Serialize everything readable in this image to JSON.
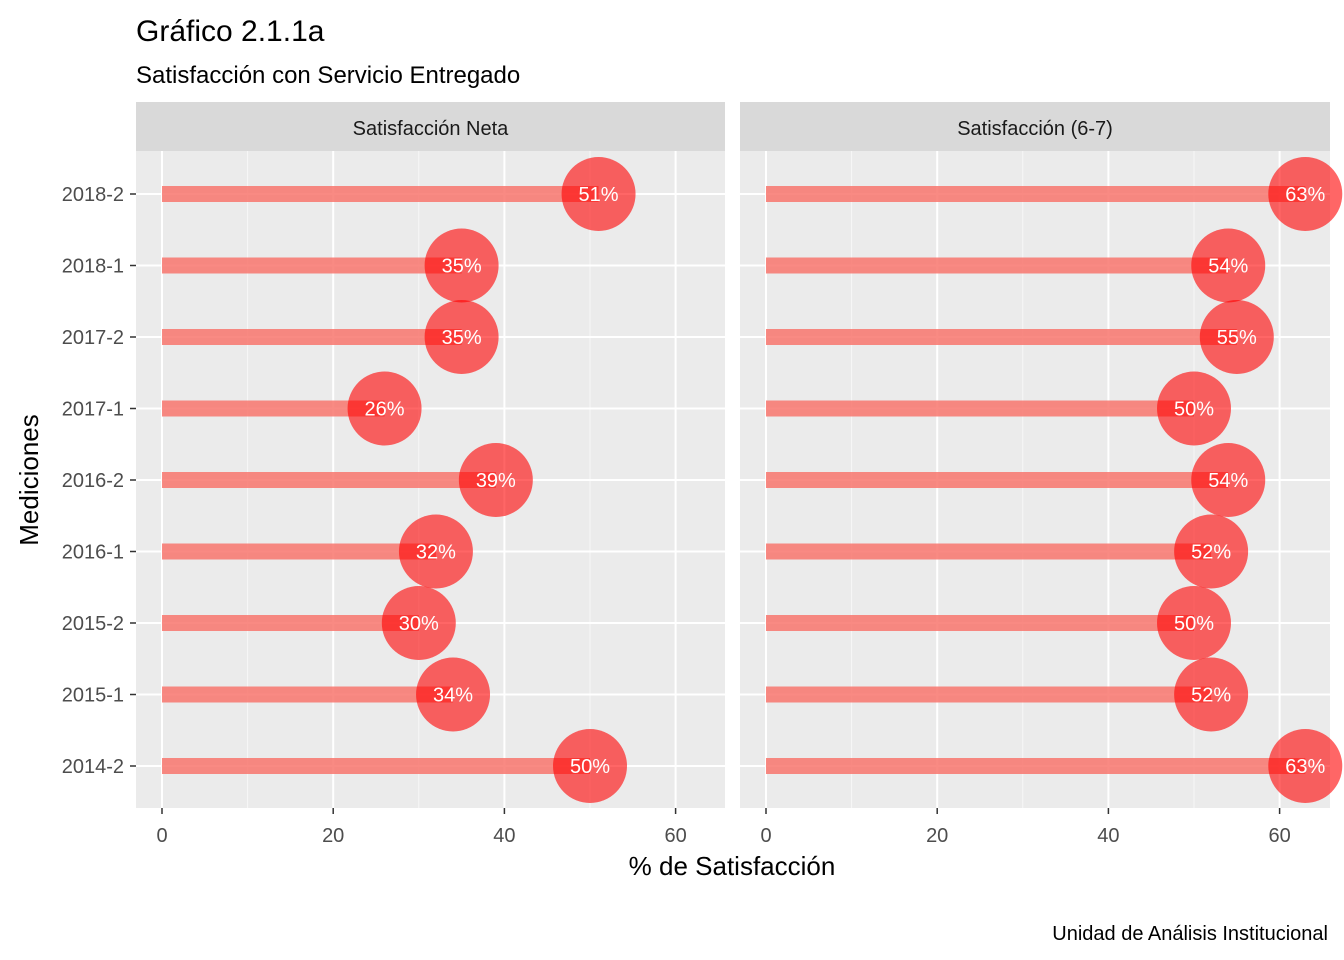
{
  "title": "Gráfico 2.1.1a",
  "subtitle": "Satisfacción con Servicio Entregado",
  "caption": "Unidad de Análisis Institucional",
  "colors": {
    "panel_bg": "#EBEBEB",
    "strip_bg": "#D9D9D9",
    "grid": "#FFFFFF",
    "segment": "#F8766D",
    "point": "#FF0000"
  },
  "chart_data": {
    "type": "lollipop",
    "xlabel": "% de Satisfacción",
    "ylabel": "Mediciones",
    "xlim": [
      0,
      65
    ],
    "x_ticks": [
      0,
      20,
      40,
      60
    ],
    "categories": [
      "2018-2",
      "2018-1",
      "2017-2",
      "2017-1",
      "2016-2",
      "2016-1",
      "2015-2",
      "2015-1",
      "2014-2"
    ],
    "grid": true,
    "panels": [
      {
        "name": "Satisfacción Neta",
        "values": [
          51,
          35,
          35,
          26,
          39,
          32,
          30,
          34,
          50
        ],
        "labels": [
          "51%",
          "35%",
          "35%",
          "26%",
          "39%",
          "32%",
          "30%",
          "34%",
          "50%"
        ]
      },
      {
        "name": "Satisfacción (6-7)",
        "values": [
          63,
          54,
          55,
          50,
          54,
          52,
          50,
          52,
          63
        ],
        "labels": [
          "63%",
          "54%",
          "55%",
          "50%",
          "54%",
          "52%",
          "50%",
          "52%",
          "63%"
        ]
      }
    ]
  }
}
